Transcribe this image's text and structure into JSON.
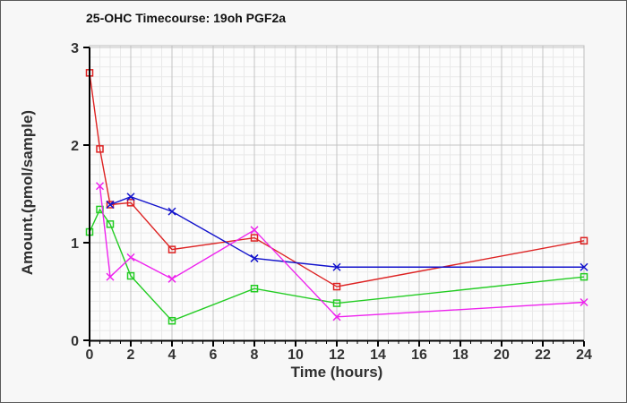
{
  "window": {
    "background_color": "#f7f7f7",
    "border_color": "#5a5a5a"
  },
  "chart_data": {
    "type": "line",
    "title": "25-OHC Timecourse: 19oh PGF2a",
    "xlabel": "Time (hours)",
    "ylabel": "Amount.(pmol/sample)",
    "xlim": [
      0,
      24
    ],
    "ylim": [
      0,
      3
    ],
    "x_major_ticks": [
      0,
      2,
      4,
      6,
      8,
      10,
      12,
      14,
      16,
      18,
      20,
      22,
      24
    ],
    "y_major_ticks": [
      0,
      1,
      2,
      3
    ],
    "x_minor_step": 0.5,
    "y_minor_step": 0.1,
    "grid": true,
    "legend_position": "none",
    "plot_bg_color": "#fcfcfc",
    "plot_border_color": "#bdbdbd",
    "grid_major_color": "#c3c3c3",
    "grid_minor_color": "#e9e9e9",
    "axis_color": "#000000",
    "tick_label_color": "#333333",
    "series": [
      {
        "name": "series-red",
        "color": "#dd2222",
        "marker": "square",
        "x": [
          0,
          0.5,
          1,
          2,
          4,
          8,
          12,
          24
        ],
        "y": [
          2.74,
          1.96,
          1.39,
          1.41,
          0.93,
          1.05,
          0.55,
          1.02
        ]
      },
      {
        "name": "series-blue",
        "color": "#1111cc",
        "marker": "x",
        "x": [
          1,
          2,
          4,
          8,
          12,
          24
        ],
        "y": [
          1.39,
          1.47,
          1.32,
          0.84,
          0.75,
          0.75
        ]
      },
      {
        "name": "series-green",
        "color": "#22cc22",
        "marker": "square",
        "x": [
          0,
          0.5,
          1,
          2,
          4,
          8,
          12,
          24
        ],
        "y": [
          1.11,
          1.34,
          1.19,
          0.66,
          0.2,
          0.53,
          0.38,
          0.65
        ]
      },
      {
        "name": "series-magenta",
        "color": "#ee22ee",
        "marker": "x",
        "x": [
          0.5,
          1,
          2,
          4,
          8,
          12,
          24
        ],
        "y": [
          1.58,
          0.65,
          0.85,
          0.63,
          1.13,
          0.24,
          0.39
        ]
      }
    ]
  }
}
